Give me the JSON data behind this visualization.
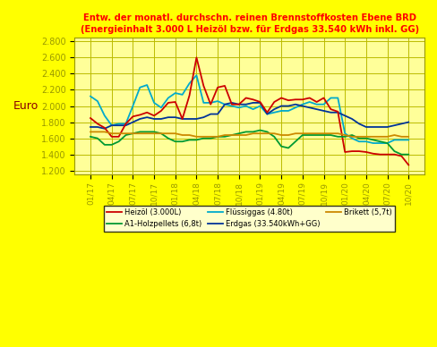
{
  "title": "Entw. der monatl. durchschn. reinen Brennstoffkosten Ebene BRD\n(Energieinhalt 3.000 L Heizöl bzw. für Erdgas 33.540 kWh inkl. GG)",
  "ylabel": "Euro",
  "ylim": [
    1.15,
    2.85
  ],
  "yticks": [
    1.2,
    1.4,
    1.6,
    1.8,
    2.0,
    2.2,
    2.4,
    2.6,
    2.8
  ],
  "background_color": "#FFFF00",
  "plot_bg_color": "#FFFF99",
  "title_color": "#FF0000",
  "ylabel_color": "#8B0000",
  "grid_color": "#CCCC00",
  "tick_color": "#999900",
  "heizoel_color": "#CC0000",
  "holzpellets_color": "#009933",
  "fluessiggas_color": "#00AACC",
  "erdgas_color": "#003399",
  "brikett_color": "#CC8800",
  "heizoel_label": "Heizöl (3.000L)",
  "holzpellets_label": "A1-Holzpellets (6,8t)",
  "fluessiggas_label": "Flüssiggas (4.80t)",
  "erdgas_label": "Erdgas (33.540kWh+GG)",
  "brikett_label": "Brikett (5,7t)",
  "heizoel": [
    1.85,
    1.78,
    1.73,
    1.62,
    1.62,
    1.78,
    1.87,
    1.89,
    1.92,
    1.88,
    1.94,
    2.04,
    2.05,
    1.84,
    2.13,
    2.6,
    2.25,
    2.02,
    2.23,
    2.25,
    2.02,
    2.02,
    2.1,
    2.08,
    2.05,
    1.92,
    2.05,
    2.1,
    2.07,
    2.08,
    2.08,
    2.1,
    2.05,
    2.1,
    1.96,
    1.93,
    1.43,
    1.44,
    1.44,
    1.43,
    1.41,
    1.4,
    1.4,
    1.4,
    1.38,
    1.27
  ],
  "holzpellets": [
    1.62,
    1.6,
    1.52,
    1.52,
    1.56,
    1.64,
    1.66,
    1.68,
    1.68,
    1.68,
    1.66,
    1.6,
    1.56,
    1.56,
    1.58,
    1.58,
    1.6,
    1.6,
    1.62,
    1.62,
    1.64,
    1.66,
    1.68,
    1.68,
    1.7,
    1.68,
    1.62,
    1.5,
    1.48,
    1.56,
    1.64,
    1.64,
    1.64,
    1.64,
    1.64,
    1.62,
    1.62,
    1.64,
    1.6,
    1.6,
    1.58,
    1.56,
    1.54,
    1.44,
    1.4,
    1.4
  ],
  "fluessiggas": [
    2.12,
    2.06,
    1.88,
    1.76,
    1.78,
    1.78,
    2.0,
    2.23,
    2.26,
    2.04,
    1.98,
    2.1,
    2.16,
    2.14,
    2.28,
    2.38,
    2.04,
    2.04,
    2.06,
    2.02,
    2.0,
    1.98,
    2.0,
    1.96,
    2.0,
    1.9,
    1.92,
    1.94,
    1.94,
    1.98,
    2.02,
    2.05,
    2.02,
    2.02,
    2.1,
    2.1,
    1.66,
    1.6,
    1.56,
    1.56,
    1.54,
    1.54,
    1.54,
    1.58,
    1.58,
    1.58
  ],
  "erdgas": [
    1.74,
    1.74,
    1.72,
    1.76,
    1.76,
    1.76,
    1.8,
    1.84,
    1.86,
    1.84,
    1.84,
    1.86,
    1.86,
    1.84,
    1.84,
    1.84,
    1.86,
    1.9,
    1.9,
    2.02,
    2.04,
    2.02,
    2.02,
    2.04,
    2.04,
    1.9,
    1.96,
    2.0,
    2.0,
    2.02,
    2.0,
    1.98,
    1.96,
    1.94,
    1.92,
    1.92,
    1.88,
    1.84,
    1.78,
    1.74,
    1.74,
    1.74,
    1.74,
    1.76,
    1.78,
    1.8
  ],
  "brikett": [
    1.68,
    1.68,
    1.68,
    1.66,
    1.66,
    1.66,
    1.66,
    1.66,
    1.66,
    1.66,
    1.66,
    1.66,
    1.66,
    1.64,
    1.64,
    1.62,
    1.62,
    1.62,
    1.62,
    1.64,
    1.64,
    1.64,
    1.64,
    1.66,
    1.66,
    1.66,
    1.66,
    1.64,
    1.64,
    1.66,
    1.66,
    1.66,
    1.66,
    1.66,
    1.66,
    1.66,
    1.64,
    1.62,
    1.62,
    1.62,
    1.62,
    1.62,
    1.62,
    1.64,
    1.62,
    1.62
  ]
}
